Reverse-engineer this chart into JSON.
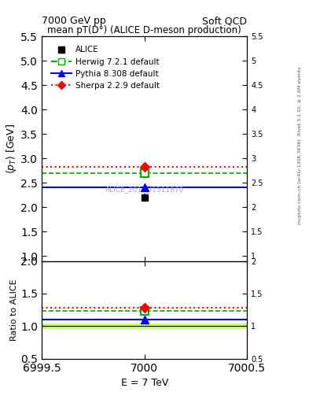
{
  "title_top": "7000 GeV pp",
  "title_right": "Soft QCD",
  "plot_title": "mean pT(D°) (ALICE D-meson production)",
  "ref_label": "ALICE_2017_I1511870",
  "right_label1": "Rivet 3.1.10, ≥ 2.6M events",
  "right_label2": "[arXiv:1306.3436]",
  "right_label3": "mcplots.cern.ch",
  "xlabel": "E = 7 TeV",
  "ylabel_main": "$\\langle p_{T}\\rangle$ [GeV]",
  "ylabel_ratio": "Ratio to ALICE",
  "x_center": 7000,
  "xlim": [
    6999.5,
    7000.5
  ],
  "xticks": [
    6999.5,
    7000.0,
    7000.5
  ],
  "xticklabels": [
    "6999.5",
    "7000",
    "7000.5"
  ],
  "ylim_main": [
    0.9,
    5.5
  ],
  "ylim_ratio": [
    0.5,
    2.0
  ],
  "yticks_main": [
    1.0,
    1.5,
    2.0,
    2.5,
    3.0,
    3.5,
    4.0,
    4.5,
    5.0,
    5.5
  ],
  "yticks_ratio": [
    0.5,
    1.0,
    1.5,
    2.0
  ],
  "alice_value": 2.2,
  "alice_error_low": 0.08,
  "alice_error_high": 0.08,
  "herwig_value": 2.7,
  "pythia_value": 2.4,
  "sherpa_value": 2.82,
  "alice_ratio": 1.0,
  "herwig_ratio": 1.23,
  "pythia_ratio": 1.1,
  "sherpa_ratio": 1.28,
  "alice_band_low": 0.96,
  "alice_band_high": 1.04,
  "herwig_color": "#00aa00",
  "pythia_color": "#0000ff",
  "sherpa_color": "#ff0000",
  "alice_color": "#000000",
  "alice_band_color_outer": "#ccff66",
  "alice_band_color_inner": "#aaee00"
}
